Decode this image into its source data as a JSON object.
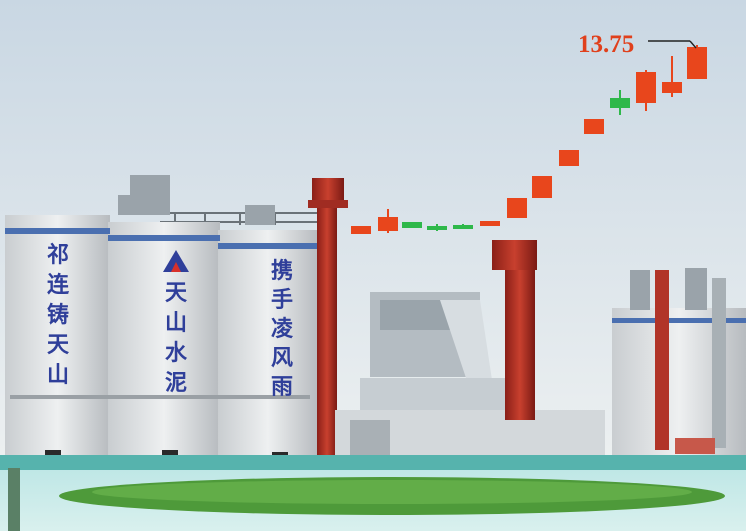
{
  "colors": {
    "rising": "#e8461c",
    "falling": "#2eb84a",
    "accent": "#e0401c",
    "silo_text": "#2f3f9a",
    "sky_top": "#cbd8e4",
    "sky_bottom": "#f3f5f4"
  },
  "silos": {
    "left": {
      "chars": [
        "祁",
        "连",
        "铸",
        "天",
        "山"
      ]
    },
    "middle": {
      "chars": [
        "天",
        "山",
        "水",
        "泥"
      ],
      "logo": "triangle-logo"
    },
    "right": {
      "chars": [
        "携",
        "手",
        "凌",
        "风",
        "雨"
      ]
    }
  },
  "price_label": "13.75",
  "candles": [
    {
      "direction": "up"
    },
    {
      "direction": "up"
    },
    {
      "direction": "down"
    },
    {
      "direction": "down"
    },
    {
      "direction": "down"
    },
    {
      "direction": "up"
    },
    {
      "direction": "up"
    },
    {
      "direction": "up"
    },
    {
      "direction": "up"
    },
    {
      "direction": "up"
    },
    {
      "direction": "down"
    },
    {
      "direction": "up"
    },
    {
      "direction": "up"
    },
    {
      "direction": "up"
    }
  ]
}
